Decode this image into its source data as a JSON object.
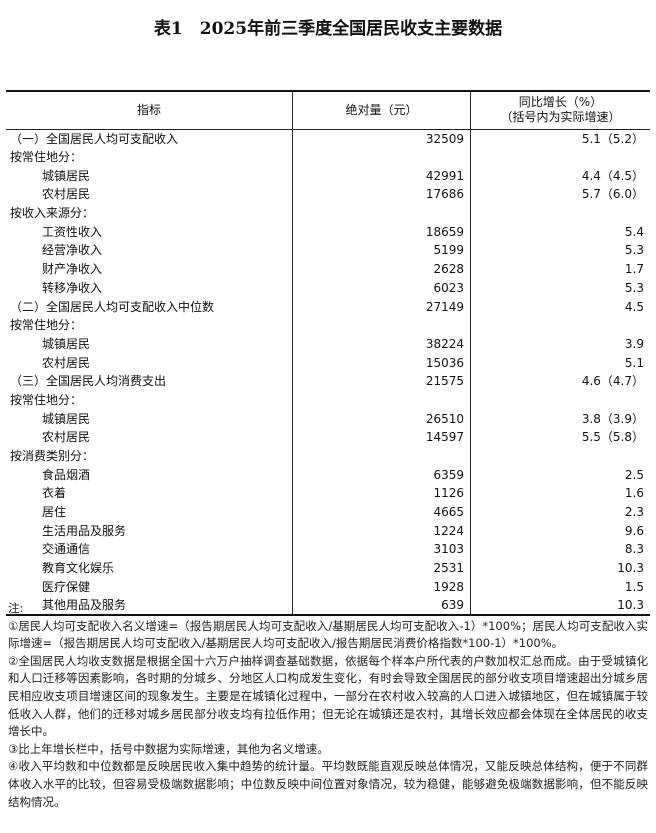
{
  "title": "表1　2025年前三季度全国居民收支主要数据",
  "table": {
    "headers": [
      "指标",
      "绝对量（元）",
      "同比增长（%）\n（括号内为实际增速）"
    ],
    "header_growth_line1": "同比增长（%）",
    "header_growth_line2": "（括号内为实际增速）",
    "rows": [
      {
        "label": "（一）全国居民人均可支配收入",
        "level": 0,
        "value": "32509",
        "growth": "5.1（5.2）"
      },
      {
        "label": "按常住地分：",
        "level": 1,
        "value": "",
        "growth": ""
      },
      {
        "label": "城镇居民",
        "level": 2,
        "value": "42991",
        "growth": "4.4（4.5）"
      },
      {
        "label": "农村居民",
        "level": 2,
        "value": "17686",
        "growth": "5.7（6.0）"
      },
      {
        "label": "按收入来源分：",
        "level": 1,
        "value": "",
        "growth": ""
      },
      {
        "label": "工资性收入",
        "level": 2,
        "value": "18659",
        "growth": "5.4"
      },
      {
        "label": "经营净收入",
        "level": 2,
        "value": "5199",
        "growth": "5.3"
      },
      {
        "label": "财产净收入",
        "level": 2,
        "value": "2628",
        "growth": "1.7"
      },
      {
        "label": "转移净收入",
        "level": 2,
        "value": "6023",
        "growth": "5.3"
      },
      {
        "label": "（二）全国居民人均可支配收入中位数",
        "level": 0,
        "value": "27149",
        "growth": "4.5"
      },
      {
        "label": "按常住地分：",
        "level": 1,
        "value": "",
        "growth": ""
      },
      {
        "label": "城镇居民",
        "level": 2,
        "value": "38224",
        "growth": "3.9"
      },
      {
        "label": "农村居民",
        "level": 2,
        "value": "15036",
        "growth": "5.1"
      },
      {
        "label": "（三）全国居民人均消费支出",
        "level": 0,
        "value": "21575",
        "growth": "4.6（4.7）"
      },
      {
        "label": "按常住地分：",
        "level": 1,
        "value": "",
        "growth": ""
      },
      {
        "label": "城镇居民",
        "level": 2,
        "value": "26510",
        "growth": "3.8（3.9）"
      },
      {
        "label": "农村居民",
        "level": 2,
        "value": "14597",
        "growth": "5.5（5.8）"
      },
      {
        "label": "按消费类别分：",
        "level": 1,
        "value": "",
        "growth": ""
      },
      {
        "label": "食品烟酒",
        "level": 2,
        "value": "6359",
        "growth": "2.5"
      },
      {
        "label": "衣着",
        "level": 2,
        "value": "1126",
        "growth": "1.6"
      },
      {
        "label": "居住",
        "level": 2,
        "value": "4665",
        "growth": "2.3"
      },
      {
        "label": "生活用品及服务",
        "level": 2,
        "value": "1224",
        "growth": "9.6"
      },
      {
        "label": "交通通信",
        "level": 2,
        "value": "3103",
        "growth": "8.3"
      },
      {
        "label": "教育文化娱乐",
        "level": 2,
        "value": "2531",
        "growth": "10.3"
      },
      {
        "label": "医疗保健",
        "level": 2,
        "value": "1928",
        "growth": "1.5"
      },
      {
        "label": "其他用品及服务",
        "level": 2,
        "value": "639",
        "growth": "10.3"
      }
    ]
  },
  "notes": {
    "heading": "注:",
    "items": [
      "①居民人均可支配收入名义增速=（报告期居民人均可支配收入/基期居民人均可支配收入-1）*100%；居民人均可支配收入实际增速=（报告期居民人均可支配收入/基期居民人均可支配收入/报告期居民消费价格指数*100-1）*100%。",
      "②全国居民人均收支数据是根据全国十六万户抽样调查基础数据，依据每个样本户所代表的户数加权汇总而成。由于受城镇化和人口迁移等因素影响，各时期的分城乡、分地区人口构成发生变化，有时会导致全国居民的部分收支项目增速超出分城乡居民相应收支项目增速区间的现象发生。主要是在城镇化过程中，一部分在农村收入较高的人口进入城镇地区，但在城镇属于较低收入人群，他们的迁移对城乡居民部分收支均有拉低作用；但无论在城镇还是农村，其增长效应都会体现在全体居民的收支增长中。",
      "③比上年增长栏中，括号中数据为实际增速，其他为名义增速。",
      "④收入平均数和中位数都是反映居民收入集中趋势的统计量。平均数既能直观反映总体情况，又能反映总体结构，便于不同群体收入水平的比较，但容易受极端数据影响；中位数反映中间位置对象情况，较为稳健，能够避免极端数据影响，但不能反映结构情况。"
    ]
  }
}
